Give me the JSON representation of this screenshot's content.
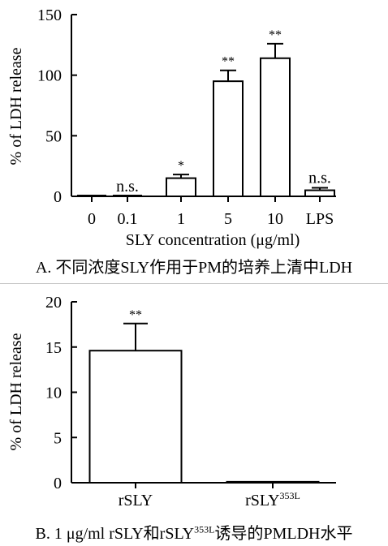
{
  "chart_data": [
    {
      "type": "bar",
      "categories": [
        "0",
        "0.1",
        "1",
        "5",
        "10",
        "LPS"
      ],
      "values": [
        0,
        0,
        15,
        95,
        114,
        5
      ],
      "errors": [
        0,
        0,
        3,
        9,
        12,
        2
      ],
      "annotations": [
        "",
        "n.s.",
        "*",
        "**",
        "**",
        "n.s."
      ],
      "ylim": [
        0,
        150
      ],
      "yticks": [
        "0",
        "50",
        "100",
        "150"
      ],
      "ylabel": "% of LDH release",
      "xlabel": "SLY concentration (μg/ml)",
      "caption": "A. 不同浓度SLY作用于PM的培养上清中LDH"
    },
    {
      "type": "bar",
      "categories": [
        {
          "base": "rSLY",
          "sup": ""
        },
        {
          "base": "rSLY",
          "sup": "353L"
        }
      ],
      "values": [
        14.6,
        0.1
      ],
      "errors": [
        3.0,
        0
      ],
      "annotations": [
        "**",
        ""
      ],
      "ylim": [
        0,
        20
      ],
      "yticks": [
        "0",
        "5",
        "10",
        "15",
        "20"
      ],
      "ylabel": "% of LDH release",
      "caption": {
        "prefix": "B. 1  μg/ml rSLY和rSLY",
        "sup": "353L",
        "suffix": "诱导的PMLDH水平"
      }
    }
  ]
}
